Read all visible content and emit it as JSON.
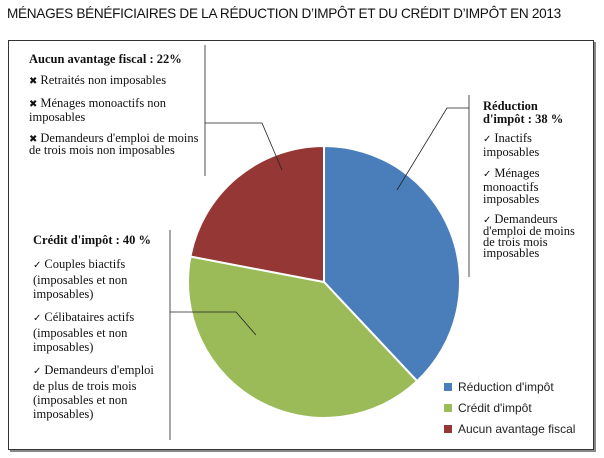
{
  "chart_data": {
    "type": "pie",
    "title": "MÉNAGES BÉNÉFICIAIRES DE LA RÉDUCTION D’IMPÔT ET DU CRÉDIT D’IMPÔT EN 2013",
    "slices": [
      {
        "label": "Réduction d'impôt",
        "value": 38,
        "color": "#4a7ebb"
      },
      {
        "label": "Crédit d'impôt",
        "value": 40,
        "color": "#9bbb59"
      },
      {
        "label": "Aucun avantage fiscal",
        "value": 22,
        "color": "#953735"
      }
    ],
    "legend_position": "bottom-right",
    "annotations": {
      "aucun": {
        "heading": "Aucun avantage fiscal : 22%",
        "marker": "✖",
        "items": [
          "Retraités non imposables",
          "Ménages  monoactifs non imposables",
          "Demandeurs d'emploi de moins de trois mois non imposables"
        ]
      },
      "reduction": {
        "heading": "Réduction d'impôt  : 38 %",
        "marker": "✓",
        "items": [
          "Inactifs imposables",
          "Ménages monoactifs imposables",
          "Demandeurs d'emploi de moins de trois mois imposables"
        ]
      },
      "credit": {
        "heading": "Crédit d'impôt  : 40 %",
        "marker": "✓",
        "items": [
          "Couples biactifs (imposables et non imposables)",
          "Célibataires actifs (imposables et non imposables)",
          "Demandeurs d'emploi de plus de trois mois (imposables et non imposables)"
        ]
      }
    }
  }
}
